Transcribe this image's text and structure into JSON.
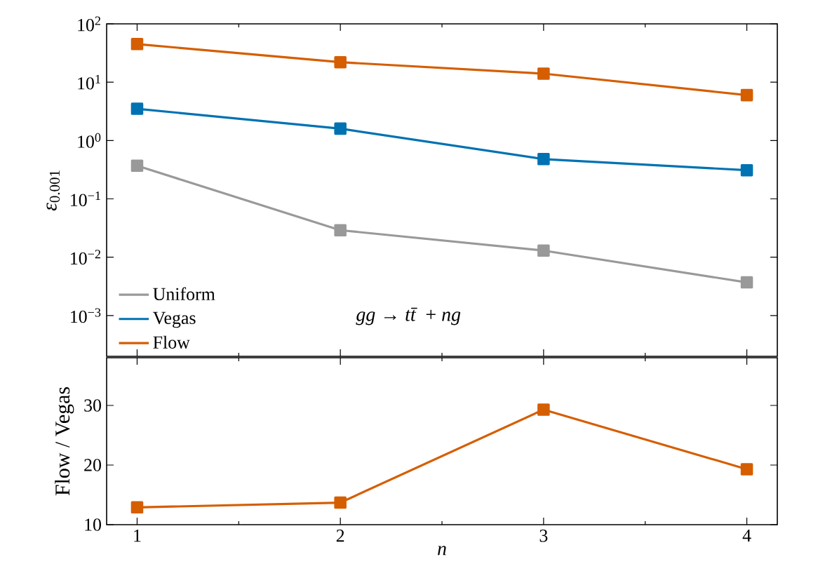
{
  "chart_data": [
    {
      "type": "line",
      "x": [
        1,
        2,
        3,
        4
      ],
      "xlim": [
        0.85,
        4.15
      ],
      "ylim": [
        0.0002,
        100
      ],
      "log": "y",
      "tick_labels": "y",
      "ylabel": "*ε*$_{0.001}$",
      "marker": "square",
      "legend": "bottom left",
      "yticks": [
        {
          "value": 0.001,
          "label": "10$^{−3}$"
        },
        {
          "value": 0.01,
          "label": "10$^{−2}$"
        },
        {
          "value": 0.1,
          "label": "10$^{−1}$"
        },
        {
          "value": 1,
          "label": "10$^{0}$"
        },
        {
          "value": 10,
          "label": "10$^{1}$"
        },
        {
          "value": 100,
          "label": "10$^{2}$"
        }
      ],
      "annotations": [
        "*gg* → *tt̄* + *ng*"
      ],
      "series": [
        {
          "name": "Uniform",
          "color": "#999999",
          "values": [
            0.37,
            0.029,
            0.013,
            0.0037
          ]
        },
        {
          "name": "Vegas",
          "color": "#0072b2",
          "values": [
            3.5,
            1.6,
            0.48,
            0.31
          ]
        },
        {
          "name": "Flow",
          "color": "#d55e00",
          "values": [
            45,
            22,
            14,
            6
          ]
        }
      ]
    },
    {
      "type": "line",
      "x": [
        1,
        2,
        3,
        4
      ],
      "xlim": [
        0.85,
        4.15
      ],
      "ylim": [
        10,
        38
      ],
      "xticks": [
        1,
        2,
        3,
        4
      ],
      "yticks": [
        10,
        20,
        30
      ],
      "xlabel": "n",
      "ylabel": "Flow / Vegas",
      "marker": "square",
      "series": [
        {
          "color": "#d55e00",
          "values": [
            12.9,
            13.7,
            29.3,
            19.3
          ]
        }
      ]
    }
  ]
}
